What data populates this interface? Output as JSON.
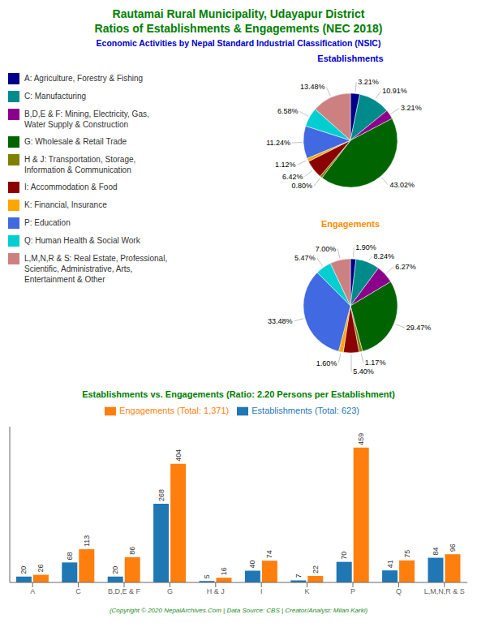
{
  "title": "Rautamai Rural Municipality, Udayapur District\nRatios of Establishments & Engagements (NEC 2018)",
  "subtitle": "Economic Activities by Nepal Standard Industrial Classification (NSIC)",
  "annotations": [
    "(Copyright © 2020 NepalArchives.Com | Data Source: CBS | Creator/Analyst: Milan Karki)"
  ],
  "chart_data": [
    {
      "type": "pie",
      "title": "Establishments",
      "categories": [
        "A: Agriculture, Forestry & Fishing",
        "C: Manufacturing",
        "B,D,E & F: Mining, Electricity, Gas,\nWater Supply & Construction",
        "G: Wholesale & Retail Trade",
        "H & J: Transportation, Storage,\nInformation & Communication",
        "I: Accommodation & Food",
        "K: Financial, Insurance",
        "P: Education",
        "Q: Human Health & Social Work",
        "L,M,N,R & S: Real Estate, Professional,\nScientific, Administrative, Arts,\nEntertainment & Other"
      ],
      "values": [
        3.21,
        10.91,
        3.21,
        43.02,
        0.8,
        6.42,
        1.12,
        11.24,
        6.58,
        13.48
      ],
      "value_labels": [
        "3.21%",
        "10.91%",
        "3.21%",
        "43.02%",
        "0.80%",
        "6.42%",
        "1.12%",
        "11.24%",
        "6.58%",
        "13.48%"
      ],
      "colors": [
        "#00008B",
        "#008B8B",
        "#8B008B",
        "#006400",
        "#808000",
        "#8B0000",
        "#FFA500",
        "#4169E1",
        "#00CED1",
        "#CD8080"
      ],
      "data_labels": true,
      "legend": "left"
    },
    {
      "type": "pie",
      "title": "Engagements",
      "categories": [
        "A: Agriculture, Forestry & Fishing",
        "C: Manufacturing",
        "B,D,E & F: Mining, Electricity, Gas,\nWater Supply & Construction",
        "G: Wholesale & Retail Trade",
        "H & J: Transportation, Storage,\nInformation & Communication",
        "I: Accommodation & Food",
        "K: Financial, Insurance",
        "P: Education",
        "Q: Human Health & Social Work",
        "L,M,N,R & S: Real Estate, Professional,\nScientific, Administrative, Arts,\nEntertainment & Other"
      ],
      "values": [
        1.9,
        8.24,
        6.27,
        29.47,
        1.17,
        5.4,
        1.6,
        33.48,
        5.47,
        7.0
      ],
      "value_labels": [
        "1.90%",
        "8.24%",
        "6.27%",
        "29.47%",
        "1.17%",
        "5.40%",
        "1.60%",
        "33.48%",
        "5.47%",
        "7.00%"
      ],
      "colors": [
        "#00008B",
        "#008B8B",
        "#8B008B",
        "#006400",
        "#808000",
        "#8B0000",
        "#FFA500",
        "#4169E1",
        "#00CED1",
        "#CD8080"
      ],
      "data_labels": true
    },
    {
      "type": "bar",
      "title": "Establishments vs. Engagements (Ratio: 2.20 Persons per Establishment)",
      "categories": [
        "A",
        "C",
        "B,D,E & F",
        "G",
        "H & J",
        "I",
        "K",
        "P",
        "Q",
        "L,M,N,R & S"
      ],
      "series": [
        {
          "name": "Establishments (Total: 623)",
          "color": "#1F77B4",
          "values": [
            20,
            68,
            20,
            268,
            5,
            40,
            7,
            70,
            41,
            84
          ]
        },
        {
          "name": "Engagements (Total: 1,371)",
          "color": "#FF7F0E",
          "values": [
            26,
            113,
            86,
            404,
            16,
            74,
            22,
            459,
            75,
            96
          ]
        }
      ],
      "ylim": [
        0,
        530
      ],
      "data_labels": true,
      "tick_labels": "x",
      "legend": "top",
      "grid": false
    }
  ]
}
